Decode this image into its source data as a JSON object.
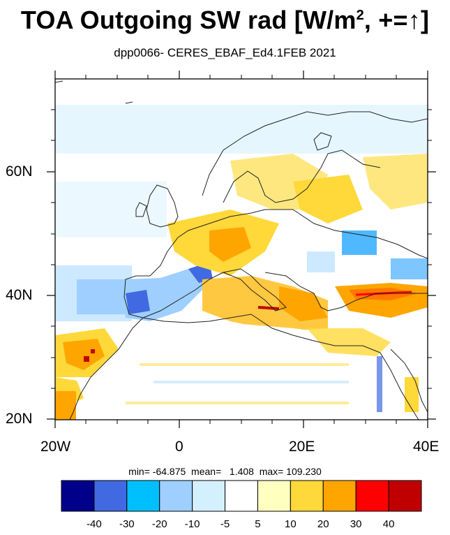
{
  "title": {
    "main": "TOA Outgoing SW rad [W/m",
    "sup": "2",
    "tail": ", +=↑]"
  },
  "subtitle": "dpp0066- CERES_EBAF_Ed4.1FEB 2021",
  "axes": {
    "lat_labels": [
      "60N",
      "40N",
      "20N"
    ],
    "lon_labels": [
      "20W",
      "0",
      "20E",
      "40E"
    ]
  },
  "stats": {
    "text": "min= -64.875  mean=   1.408  max= 109.230",
    "min": -64.875,
    "mean": 1.408,
    "max": 109.23
  },
  "colorbar": {
    "tick_labels": [
      "-40",
      "-30",
      "-20",
      "-10",
      "-5",
      "5",
      "10",
      "20",
      "30",
      "40"
    ],
    "colors": [
      "#00008b",
      "#4169e1",
      "#00bfff",
      "#9ecfff",
      "#d4f0ff",
      "#ffffff",
      "#ffffc0",
      "#ffd83a",
      "#ffa500",
      "#ff0000",
      "#c00000"
    ]
  },
  "map": {
    "projection": "cylindrical-equidistant",
    "lon_range": [
      -20,
      40
    ],
    "lat_range": [
      20,
      75
    ],
    "coastlines": true,
    "field": "TOA Outgoing SW rad difference"
  }
}
